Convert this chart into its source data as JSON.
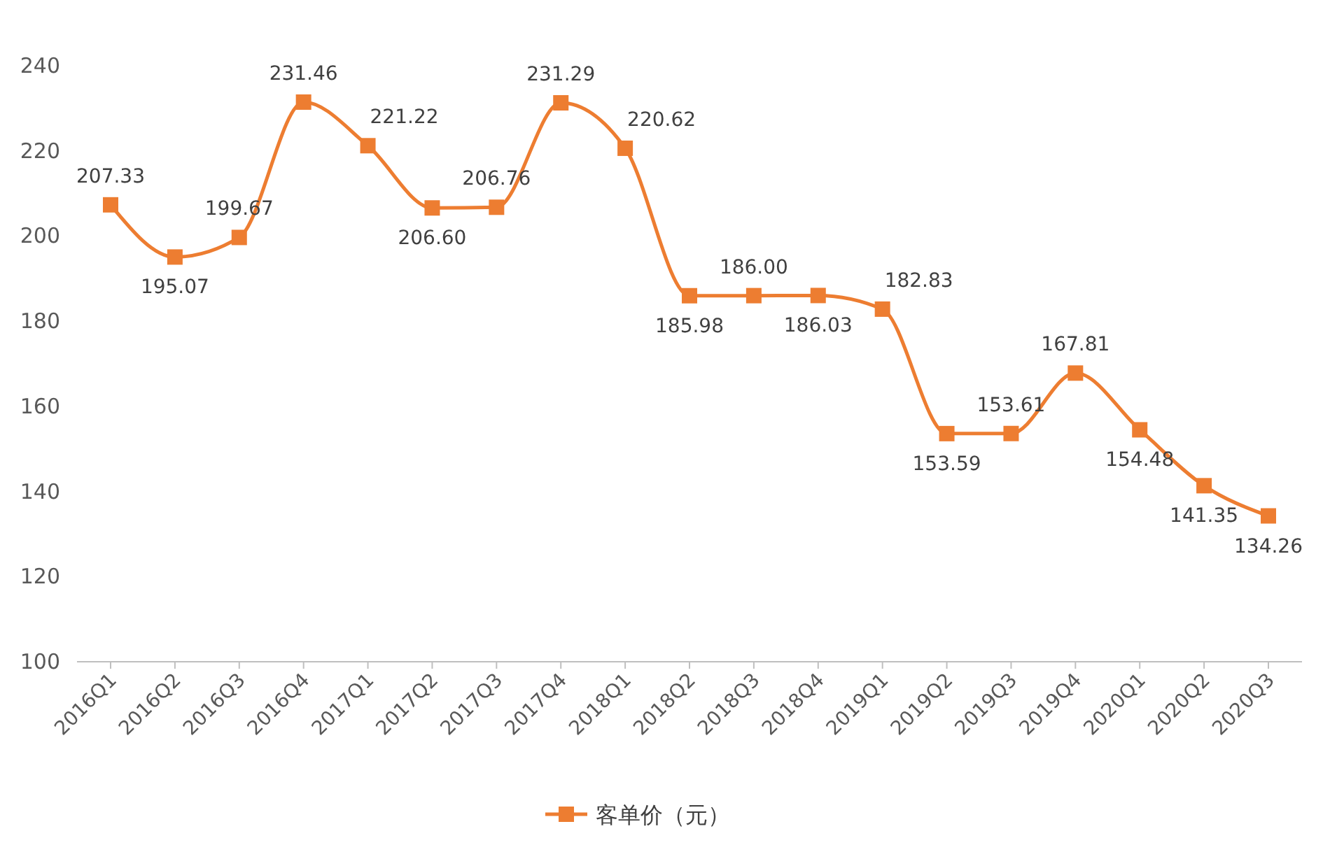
{
  "chart_data": {
    "type": "line",
    "categories": [
      "2016Q1",
      "2016Q2",
      "2016Q3",
      "2016Q4",
      "2017Q1",
      "2017Q2",
      "2017Q3",
      "2017Q4",
      "2018Q1",
      "2018Q2",
      "2018Q3",
      "2018Q4",
      "2019Q1",
      "2019Q2",
      "2019Q3",
      "2019Q4",
      "2020Q1",
      "2020Q2",
      "2020Q3"
    ],
    "series": [
      {
        "name": "客单价（元）",
        "color": "#ed7d31",
        "values": [
          207.33,
          195.07,
          199.67,
          231.46,
          221.22,
          206.6,
          206.76,
          231.29,
          220.62,
          185.98,
          186,
          186.03,
          182.83,
          153.59,
          153.61,
          167.81,
          154.48,
          141.35,
          134.26
        ],
        "value_labels": [
          "207.33",
          "195.07",
          "199.67",
          "231.46",
          "221.22",
          "206.60",
          "206.76",
          "231.29",
          "220.62",
          "185.98",
          "186.00",
          "186.03",
          "182.83",
          "153.59",
          "153.61",
          "167.81",
          "154.48",
          "141.35",
          "134.26"
        ]
      }
    ],
    "ylim": [
      100,
      240
    ],
    "yticks": [
      100,
      120,
      140,
      160,
      180,
      200,
      220,
      240
    ],
    "grid": false,
    "legend": "bottom",
    "marker": "square",
    "line_style": "solid"
  }
}
